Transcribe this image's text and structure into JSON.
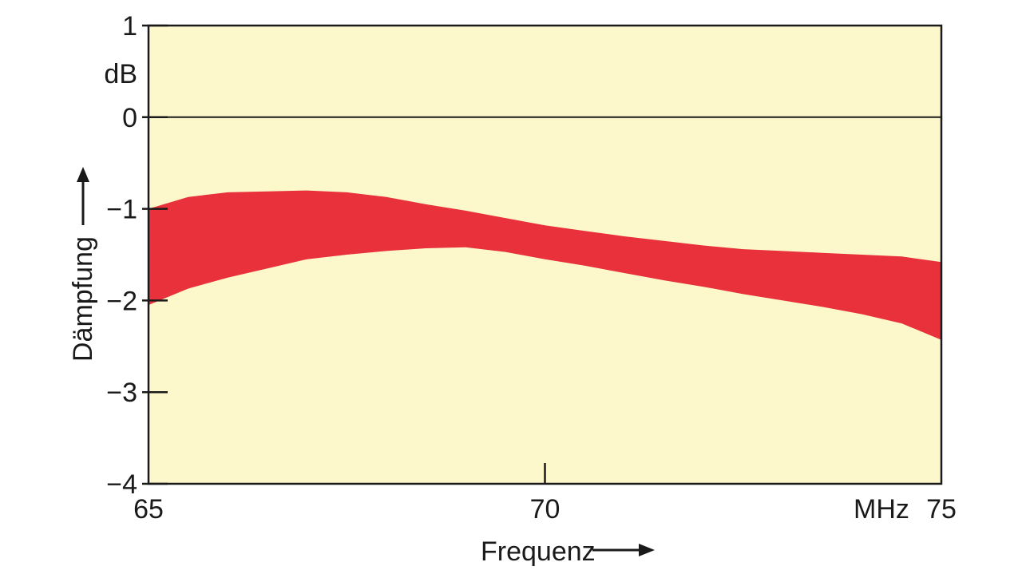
{
  "chart_data": {
    "type": "area",
    "xlabel": "Frequenz",
    "ylabel": "Dämpfung",
    "x_unit": "MHz",
    "y_unit": "dB",
    "xlim": [
      65,
      75
    ],
    "ylim": [
      -4,
      1
    ],
    "x_ticks": [
      65,
      70,
      75
    ],
    "x_tick_labels": [
      "65",
      "70",
      "75"
    ],
    "y_ticks": [
      1,
      0,
      -1,
      -2,
      -3,
      -4
    ],
    "y_tick_labels": [
      "1",
      "0",
      "−1",
      "−2",
      "−3",
      "−4"
    ],
    "reference_line_y": 0,
    "grid": false,
    "colors": {
      "band": "#e8313a",
      "background": "#fdf8cc",
      "axis": "#1a1a1a"
    },
    "band": {
      "x": [
        65.0,
        65.5,
        66.0,
        66.5,
        67.0,
        67.5,
        68.0,
        68.5,
        69.0,
        69.5,
        70.0,
        70.5,
        71.0,
        71.5,
        72.0,
        72.5,
        73.0,
        73.5,
        74.0,
        74.5,
        75.0
      ],
      "upper": [
        -1.0,
        -0.87,
        -0.82,
        -0.81,
        -0.8,
        -0.82,
        -0.87,
        -0.95,
        -1.02,
        -1.1,
        -1.18,
        -1.24,
        -1.3,
        -1.35,
        -1.4,
        -1.44,
        -1.46,
        -1.48,
        -1.5,
        -1.52,
        -1.58
      ],
      "lower": [
        -2.05,
        -1.87,
        -1.75,
        -1.65,
        -1.55,
        -1.5,
        -1.46,
        -1.43,
        -1.42,
        -1.47,
        -1.55,
        -1.62,
        -1.7,
        -1.78,
        -1.85,
        -1.93,
        -2.0,
        -2.07,
        -2.15,
        -2.25,
        -2.43
      ]
    }
  }
}
